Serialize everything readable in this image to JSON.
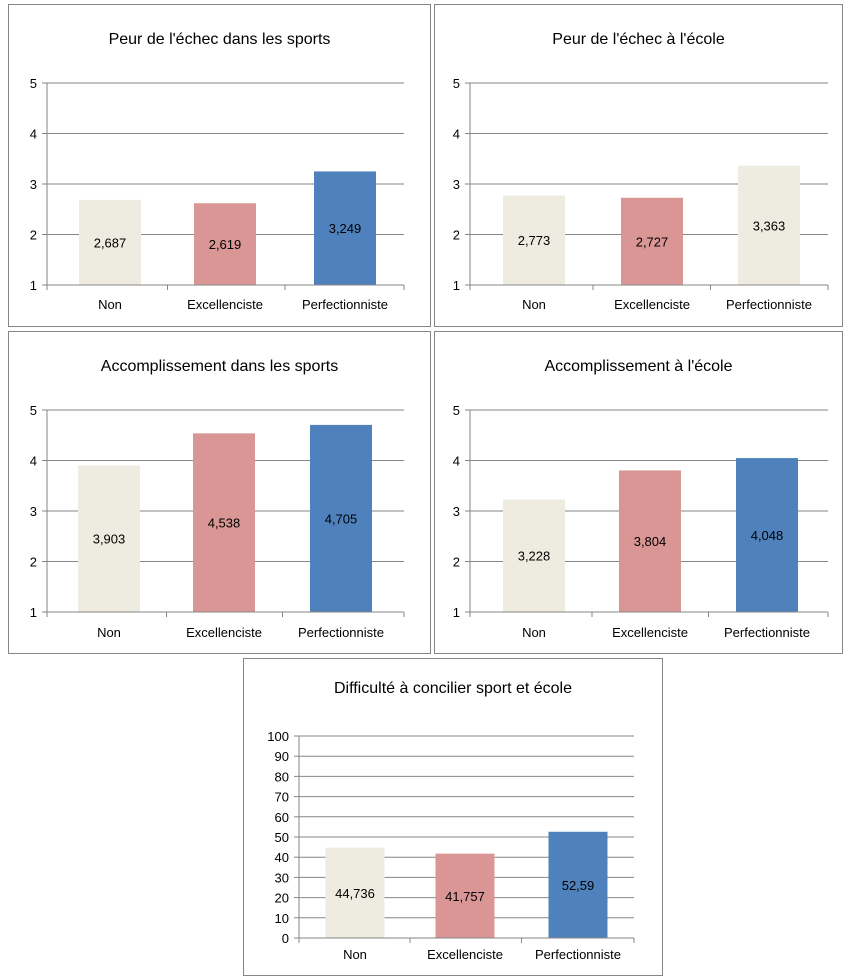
{
  "colors": {
    "non": "#EEECE1",
    "excellenciste": "#D99694",
    "perfectionniste": "#4F81BD",
    "non_alt": "#EEECE1"
  },
  "chart_data": [
    {
      "type": "bar",
      "title": "Peur de l'échec dans les sports",
      "categories": [
        "Non",
        "Excellenciste",
        "Perfectionniste"
      ],
      "values": [
        2.687,
        2.619,
        3.249
      ],
      "value_labels": [
        "2,687",
        "2,619",
        "3,249"
      ],
      "bar_colors": [
        "#EEECE1",
        "#D99694",
        "#4F81BD"
      ],
      "ylim": [
        1,
        5
      ],
      "yticks": [
        "1",
        "2",
        "3",
        "4",
        "5"
      ],
      "grid": true,
      "xlabel": "",
      "ylabel": ""
    },
    {
      "type": "bar",
      "title": "Peur de l'échec à l'école",
      "categories": [
        "Non",
        "Excellenciste",
        "Perfectionniste"
      ],
      "values": [
        2.773,
        2.727,
        3.363
      ],
      "value_labels": [
        "2,773",
        "2,727",
        "3,363"
      ],
      "bar_colors": [
        "#EEECE1",
        "#D99694",
        "#EEECE1"
      ],
      "ylim": [
        1,
        5
      ],
      "yticks": [
        "1",
        "2",
        "3",
        "4",
        "5"
      ],
      "grid": true,
      "xlabel": "",
      "ylabel": ""
    },
    {
      "type": "bar",
      "title": "Accomplissement dans les sports",
      "categories": [
        "Non",
        "Excellenciste",
        "Perfectionniste"
      ],
      "values": [
        3.903,
        4.538,
        4.705
      ],
      "value_labels": [
        "3,903",
        "4,538",
        "4,705"
      ],
      "bar_colors": [
        "#EEECE1",
        "#D99694",
        "#4F81BD"
      ],
      "ylim": [
        1,
        5
      ],
      "yticks": [
        "1",
        "2",
        "3",
        "4",
        "5"
      ],
      "grid": true,
      "xlabel": "",
      "ylabel": ""
    },
    {
      "type": "bar",
      "title": "Accomplissement à l'école",
      "categories": [
        "Non",
        "Excellenciste",
        "Perfectionniste"
      ],
      "values": [
        3.228,
        3.804,
        4.048
      ],
      "value_labels": [
        "3,228",
        "3,804",
        "4,048"
      ],
      "bar_colors": [
        "#EEECE1",
        "#D99694",
        "#4F81BD"
      ],
      "ylim": [
        1,
        5
      ],
      "yticks": [
        "1",
        "2",
        "3",
        "4",
        "5"
      ],
      "grid": true,
      "xlabel": "",
      "ylabel": ""
    },
    {
      "type": "bar",
      "title": "Difficulté à concilier sport et école",
      "categories": [
        "Non",
        "Excellenciste",
        "Perfectionniste"
      ],
      "values": [
        44.736,
        41.757,
        52.59
      ],
      "value_labels": [
        "44,736",
        "41,757",
        "52,59"
      ],
      "bar_colors": [
        "#EEECE1",
        "#D99694",
        "#4F81BD"
      ],
      "ylim": [
        0,
        100
      ],
      "yticks": [
        "0",
        "10",
        "20",
        "30",
        "40",
        "50",
        "60",
        "70",
        "80",
        "90",
        "100"
      ],
      "grid": true,
      "xlabel": "",
      "ylabel": ""
    }
  ]
}
